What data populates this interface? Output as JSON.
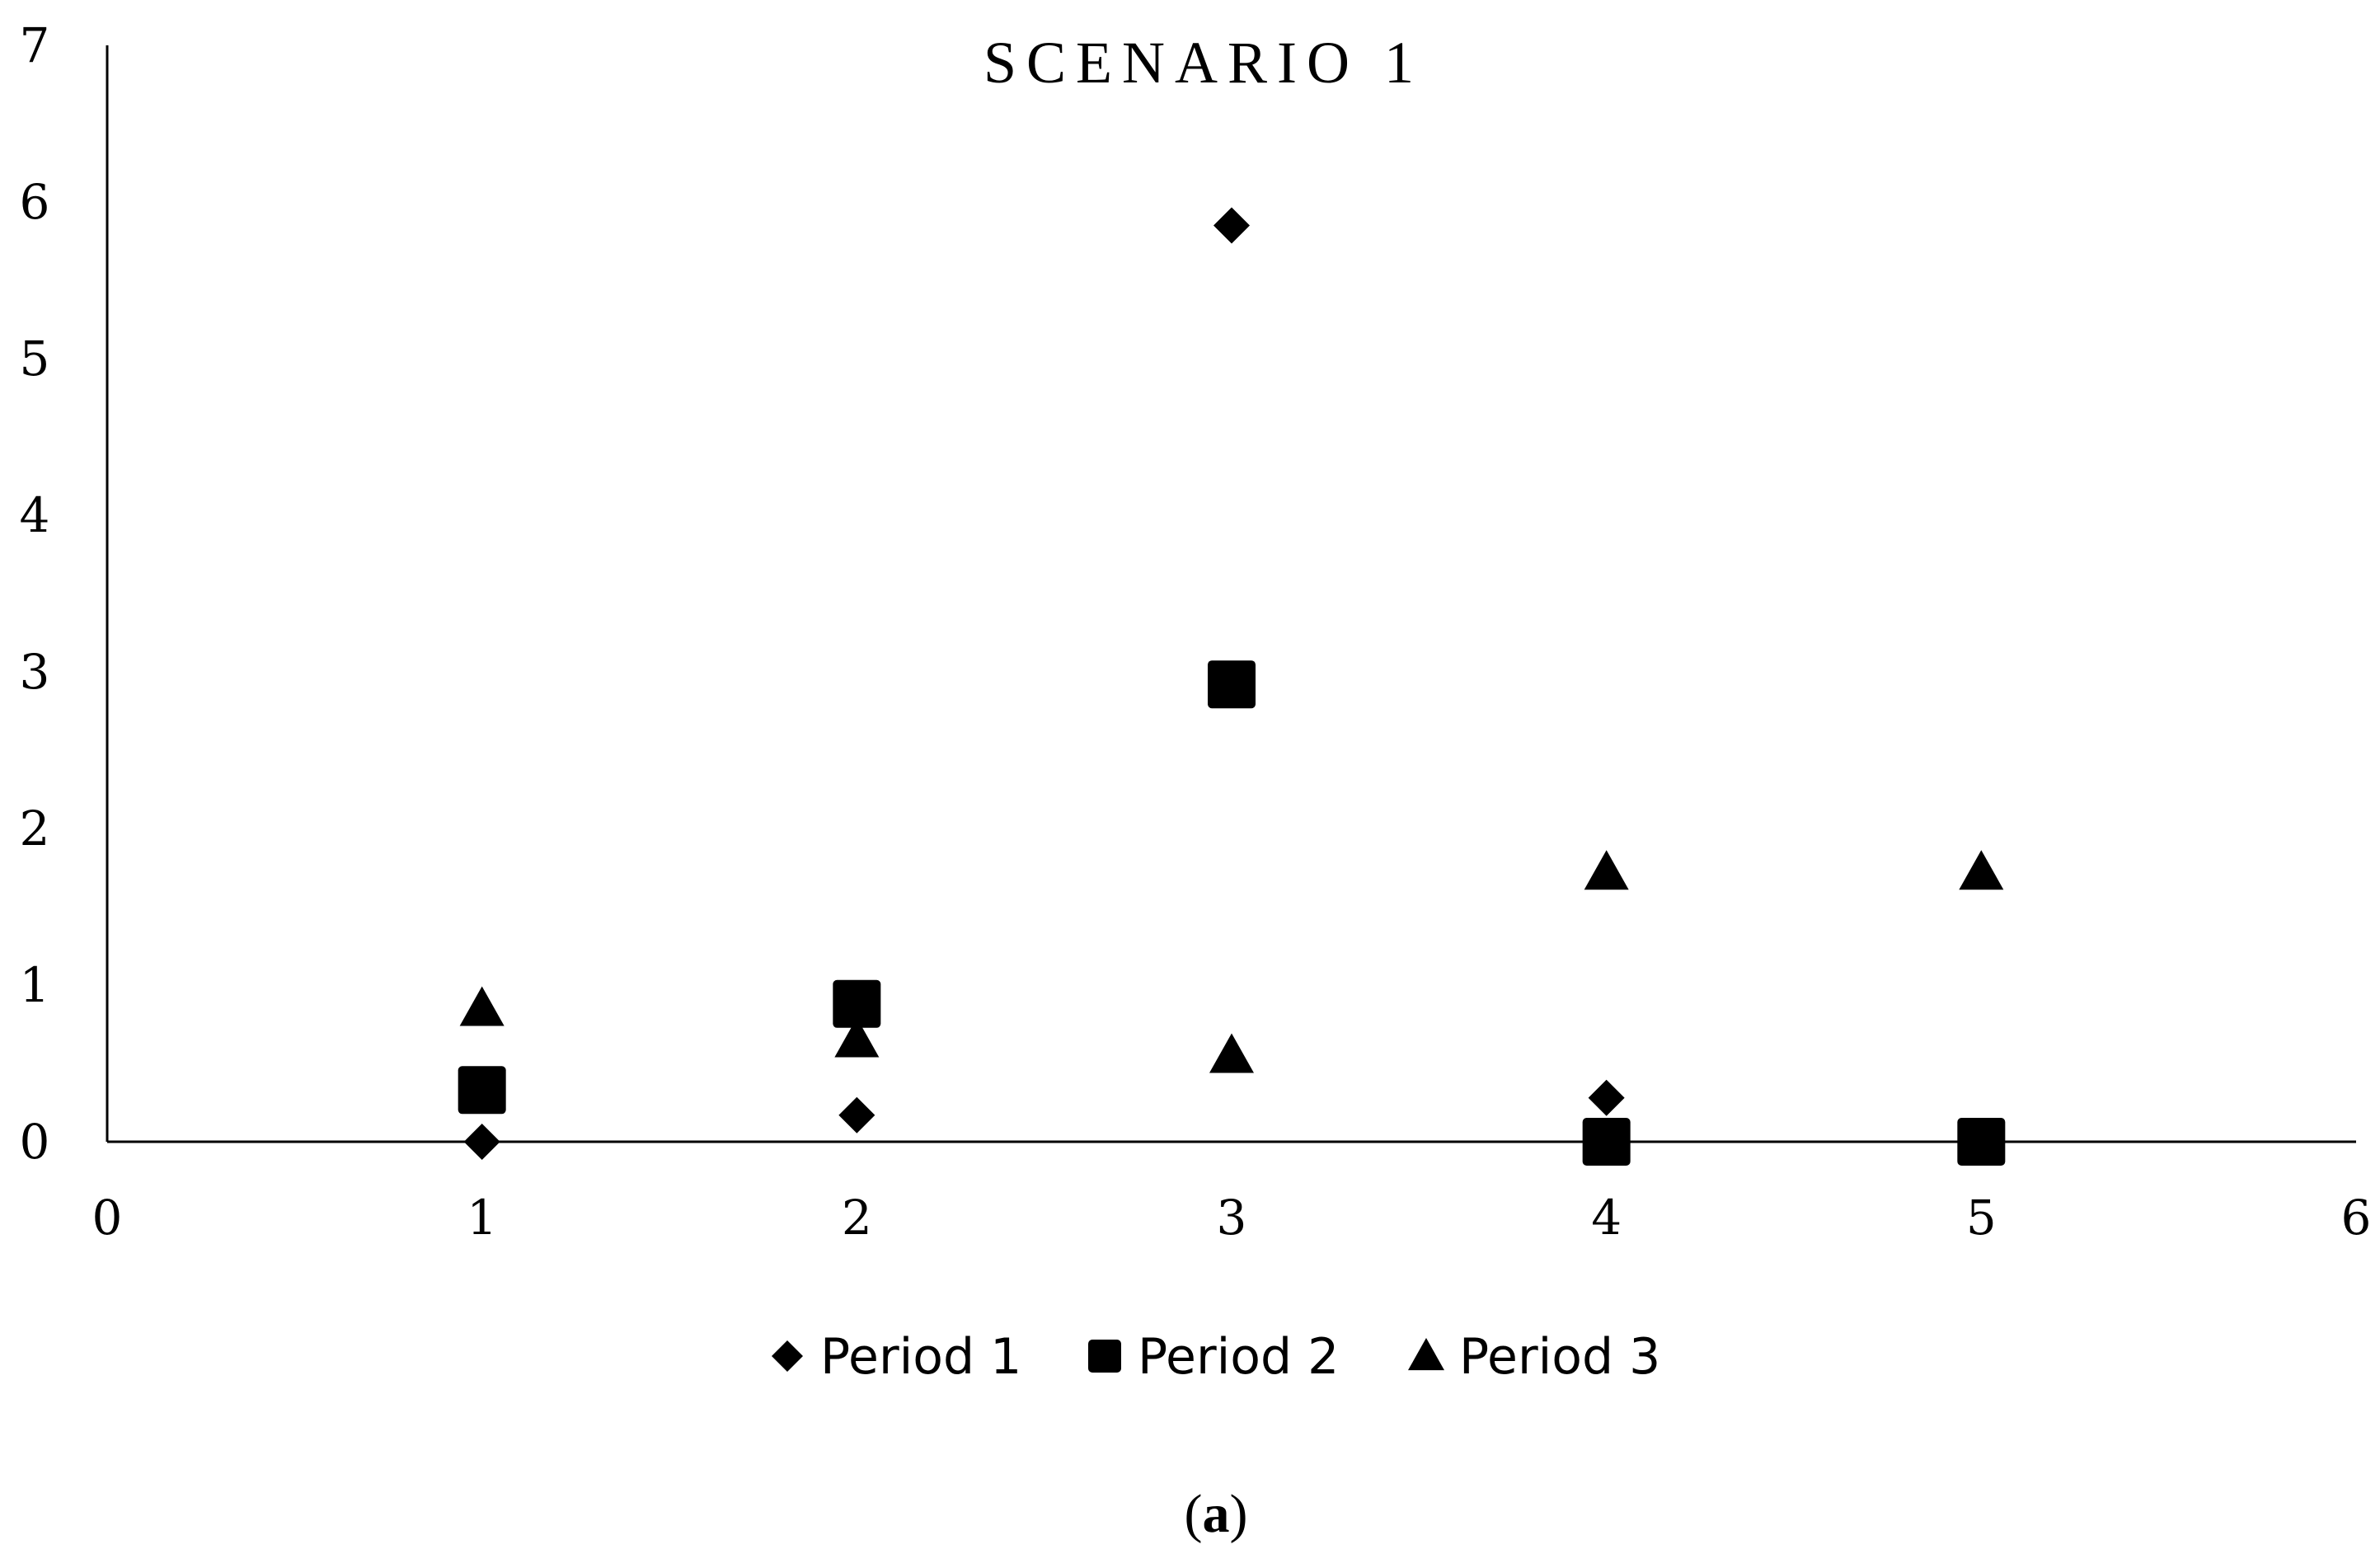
{
  "chart_data": {
    "type": "scatter",
    "title": "SCENARIO 1",
    "xlabel": "",
    "ylabel": "",
    "xlim": [
      0,
      6
    ],
    "ylim": [
      0,
      7
    ],
    "x_ticks": [
      "0",
      "1",
      "2",
      "3",
      "4",
      "5",
      "6"
    ],
    "y_ticks": [
      "0",
      "1",
      "2",
      "3",
      "4",
      "5",
      "6",
      "7"
    ],
    "grid": false,
    "legend_position": "bottom",
    "series": [
      {
        "name": "Period 1",
        "marker": "diamond",
        "color": "#000000",
        "points": [
          {
            "x": 1,
            "y": 0.0
          },
          {
            "x": 2,
            "y": 0.17
          },
          {
            "x": 3,
            "y": 5.85
          },
          {
            "x": 4,
            "y": 0.28
          }
        ]
      },
      {
        "name": "Period 2",
        "marker": "square",
        "color": "#000000",
        "points": [
          {
            "x": 1,
            "y": 0.33
          },
          {
            "x": 2,
            "y": 0.88
          },
          {
            "x": 3,
            "y": 2.92
          },
          {
            "x": 4,
            "y": 0.0
          },
          {
            "x": 5,
            "y": 0.0
          }
        ]
      },
      {
        "name": "Period 3",
        "marker": "triangle",
        "color": "#000000",
        "points": [
          {
            "x": 1,
            "y": 0.85
          },
          {
            "x": 2,
            "y": 0.65
          },
          {
            "x": 3,
            "y": 0.55
          },
          {
            "x": 4,
            "y": 1.72
          },
          {
            "x": 5,
            "y": 1.72
          }
        ]
      }
    ]
  },
  "caption": {
    "open": "(",
    "letter": "a",
    "close": ")"
  }
}
